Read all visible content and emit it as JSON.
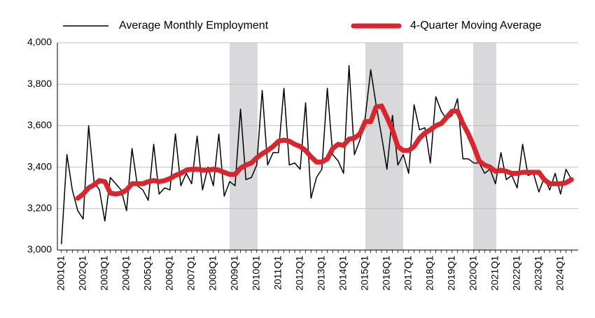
{
  "chart_data": {
    "type": "line",
    "categories": [
      "2001Q1",
      null,
      null,
      null,
      "2002Q1",
      null,
      null,
      null,
      "2003Q1",
      null,
      null,
      null,
      "2004Q1",
      null,
      null,
      null,
      "2005Q1",
      null,
      null,
      null,
      "2006Q1",
      null,
      null,
      null,
      "2007Q1",
      null,
      null,
      null,
      "2008Q1",
      null,
      null,
      null,
      "2009Q1",
      null,
      null,
      null,
      "2010Q1",
      null,
      null,
      null,
      "2011Q1",
      null,
      null,
      null,
      "2012Q1",
      null,
      null,
      null,
      "2013Q1",
      null,
      null,
      null,
      "2014Q1",
      null,
      null,
      null,
      "2015Q1",
      null,
      null,
      null,
      "2016Q1",
      null,
      null,
      null,
      "2017Q1",
      null,
      null,
      null,
      "2018Q1",
      null,
      null,
      null,
      "2019Q1",
      null,
      null,
      null,
      "2020Q1",
      null,
      null,
      null,
      "2021Q1",
      null,
      null,
      null,
      "2022Q1",
      null,
      null,
      null,
      "2023Q1",
      null,
      null,
      null,
      "2024Q1",
      null,
      null
    ],
    "series": [
      {
        "name": "Average Monthly Employment",
        "color": "#000000",
        "width": 1.5,
        "values": [
          3030,
          3460,
          3290,
          3190,
          3150,
          3600,
          3330,
          3290,
          3140,
          3350,
          3320,
          3290,
          3190,
          3490,
          3310,
          3290,
          3240,
          3510,
          3270,
          3300,
          3290,
          3560,
          3310,
          3370,
          3320,
          3550,
          3290,
          3400,
          3310,
          3560,
          3260,
          3330,
          3310,
          3680,
          3340,
          3350,
          3410,
          3770,
          3410,
          3470,
          3470,
          3780,
          3410,
          3420,
          3390,
          3710,
          3250,
          3350,
          3390,
          3780,
          3460,
          3430,
          3370,
          3890,
          3460,
          3530,
          3640,
          3870,
          3700,
          3550,
          3390,
          3650,
          3410,
          3460,
          3370,
          3700,
          3580,
          3590,
          3420,
          3740,
          3670,
          3630,
          3650,
          3730,
          3440,
          3440,
          3420,
          3420,
          3370,
          3390,
          3320,
          3470,
          3340,
          3360,
          3300,
          3510,
          3360,
          3370,
          3280,
          3350,
          3290,
          3370,
          3270,
          3390,
          3340
        ]
      },
      {
        "name": "4-Quarter Moving Average",
        "color": "#d7262d",
        "width": 7,
        "values": [
          null,
          null,
          null,
          3250,
          3270,
          3300,
          3315,
          3335,
          3330,
          3275,
          3270,
          3275,
          3290,
          3320,
          3320,
          3320,
          3330,
          3335,
          3330,
          3335,
          3345,
          3360,
          3370,
          3385,
          3390,
          3390,
          3385,
          3385,
          3390,
          3385,
          3375,
          3365,
          3365,
          3395,
          3410,
          3420,
          3445,
          3465,
          3480,
          3500,
          3525,
          3530,
          3525,
          3510,
          3500,
          3480,
          3450,
          3425,
          3425,
          3440,
          3490,
          3510,
          3505,
          3535,
          3540,
          3560,
          3620,
          3620,
          3690,
          3695,
          3640,
          3580,
          3500,
          3480,
          3480,
          3500,
          3540,
          3565,
          3580,
          3600,
          3610,
          3640,
          3670,
          3670,
          3610,
          3560,
          3500,
          3430,
          3410,
          3400,
          3380,
          3385,
          3380,
          3370,
          3370,
          3375,
          3375,
          3375,
          3375,
          3340,
          3320,
          3320,
          3320,
          3325,
          3340
        ]
      }
    ],
    "ylim": [
      3000,
      4000
    ],
    "yticks": [
      {
        "value": 3000,
        "label": "3,000"
      },
      {
        "value": 3200,
        "label": "3,200"
      },
      {
        "value": 3400,
        "label": "3,400"
      },
      {
        "value": 3600,
        "label": "3,600"
      },
      {
        "value": 3800,
        "label": "3,800"
      },
      {
        "value": 4000,
        "label": "4,000"
      }
    ],
    "grid": true
  }
}
